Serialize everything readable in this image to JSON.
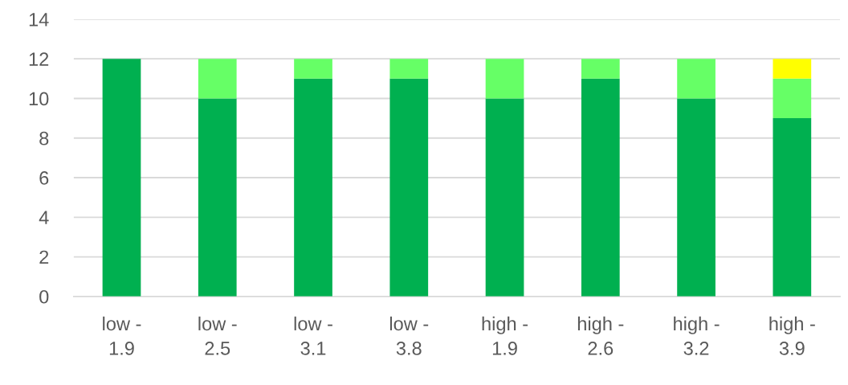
{
  "chart_data": {
    "type": "bar",
    "stacked": true,
    "categories": [
      "low - 1.9",
      "low - 2.5",
      "low - 3.1",
      "low - 3.8",
      "high - 1.9",
      "high - 2.6",
      "high - 3.2",
      "high - 3.9"
    ],
    "series": [
      {
        "color": "#00b050",
        "values": [
          12,
          10,
          11,
          11,
          10,
          11,
          10,
          9
        ]
      },
      {
        "color": "#66ff66",
        "values": [
          0,
          2,
          1,
          1,
          2,
          1,
          2,
          2
        ]
      },
      {
        "color": "#ffff00",
        "values": [
          0,
          0,
          0,
          0,
          0,
          0,
          0,
          1
        ]
      }
    ],
    "ylim": [
      0,
      14
    ],
    "yticks": [
      0,
      2,
      4,
      6,
      8,
      10,
      12,
      14
    ],
    "grid": "y"
  }
}
